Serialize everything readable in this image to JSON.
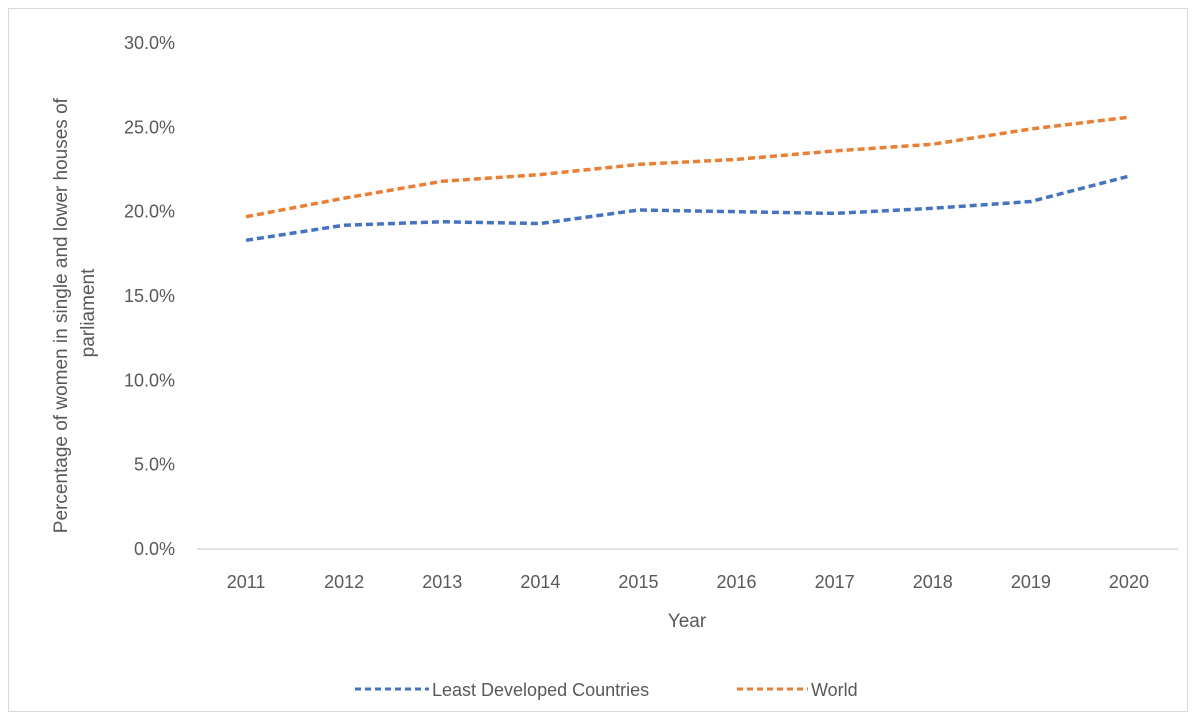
{
  "chart_data": {
    "type": "line",
    "title": "",
    "xlabel": "Year",
    "ylabel_lines": [
      "Percentage of women in single and lower houses of",
      "parliament"
    ],
    "categories": [
      "2011",
      "2012",
      "2013",
      "2014",
      "2015",
      "2016",
      "2017",
      "2018",
      "2019",
      "2020"
    ],
    "ylim": [
      0,
      30
    ],
    "yticks": [
      0,
      5,
      10,
      15,
      20,
      25,
      30
    ],
    "ytick_labels": [
      "0.0%",
      "5.0%",
      "10.0%",
      "15.0%",
      "20.0%",
      "25.0%",
      "30.0%"
    ],
    "grid": false,
    "legend_position": "bottom",
    "series": [
      {
        "name": "Least Developed Countries",
        "color": "#4472C4",
        "line_style": "dashed",
        "values": [
          18.3,
          19.2,
          19.4,
          19.3,
          20.1,
          20.0,
          19.9,
          20.2,
          20.6,
          22.1
        ]
      },
      {
        "name": "World",
        "color": "#ED7D31",
        "line_style": "dashed",
        "values": [
          19.7,
          20.8,
          21.8,
          22.2,
          22.8,
          23.1,
          23.6,
          24.0,
          24.9,
          25.6
        ]
      }
    ]
  }
}
